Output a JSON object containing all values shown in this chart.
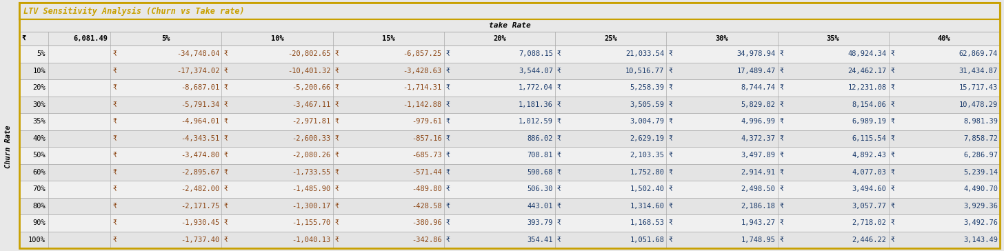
{
  "title": "LTV Sensitivity Analysis (Churn vs Take rate)",
  "subtitle": "take Rate",
  "base_value": "6,081.49",
  "take_rates": [
    "5%",
    "10%",
    "15%",
    "20%",
    "25%",
    "30%",
    "35%",
    "40%"
  ],
  "churn_rates": [
    "5%",
    "10%",
    "20%",
    "30%",
    "35%",
    "40%",
    "50%",
    "60%",
    "70%",
    "80%",
    "90%",
    "100%"
  ],
  "values": [
    [
      -34748.04,
      -20802.65,
      -6857.25,
      7088.15,
      21033.54,
      34978.94,
      48924.34,
      62869.74
    ],
    [
      -17374.02,
      -10401.32,
      -3428.63,
      3544.07,
      10516.77,
      17489.47,
      24462.17,
      31434.87
    ],
    [
      -8687.01,
      -5200.66,
      -1714.31,
      1772.04,
      5258.39,
      8744.74,
      12231.08,
      15717.43
    ],
    [
      -5791.34,
      -3467.11,
      -1142.88,
      1181.36,
      3505.59,
      5829.82,
      8154.06,
      10478.29
    ],
    [
      -4964.01,
      -2971.81,
      -979.61,
      1012.59,
      3004.79,
      4996.99,
      6989.19,
      8981.39
    ],
    [
      -4343.51,
      -2600.33,
      -857.16,
      886.02,
      2629.19,
      4372.37,
      6115.54,
      7858.72
    ],
    [
      -3474.8,
      -2080.26,
      -685.73,
      708.81,
      2103.35,
      3497.89,
      4892.43,
      6286.97
    ],
    [
      -2895.67,
      -1733.55,
      -571.44,
      590.68,
      1752.8,
      2914.91,
      4077.03,
      5239.14
    ],
    [
      -2482.0,
      -1485.9,
      -489.8,
      506.3,
      1502.4,
      2498.5,
      3494.6,
      4490.7
    ],
    [
      -2171.75,
      -1300.17,
      -428.58,
      443.01,
      1314.6,
      2186.18,
      3057.77,
      3929.36
    ],
    [
      -1930.45,
      -1155.7,
      -380.96,
      393.79,
      1168.53,
      1943.27,
      2718.02,
      3492.76
    ],
    [
      -1737.4,
      -1040.13,
      -342.86,
      354.41,
      1051.68,
      1748.95,
      2446.22,
      3143.49
    ]
  ],
  "title_color": "#C8A000",
  "row_bg_even": "#F0F0F0",
  "row_bg_odd": "#E4E4E4",
  "negative_color": "#8B4513",
  "positive_color": "#1A3A6B",
  "border_color": "#AAAAAA",
  "outer_border_color": "#C8A000",
  "bg_color": "#E8E8E8",
  "currency_symbol": "₹"
}
